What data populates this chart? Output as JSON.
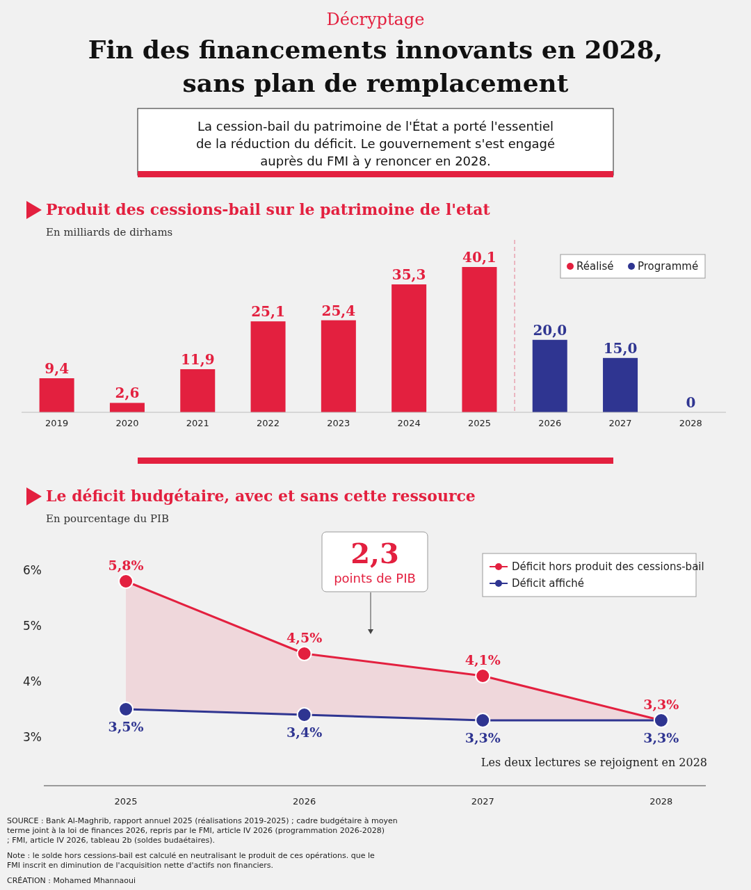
{
  "chart_data": [
    {
      "type": "other",
      "subtitle": "Décryptage",
      "title": "Fin des financements innovants en 2028, sans plan de remplacement",
      "annotations": [
        "La cession-bail du patrimoine de l'État a porté l'essentiel de la réduction du déficit. Le gouvernement s'est engagé auprès du FMI à y renoncer en 2028."
      ]
    },
    {
      "type": "bar",
      "title": "Produit des cessions-bail sur le patrimoine de l'etat",
      "subtitle": "En milliards de dirhams",
      "x": [
        2019,
        2020,
        2021,
        2022,
        2023,
        2024,
        2025,
        2026,
        2027,
        2028
      ],
      "xlim": [
        2018.5,
        2028.5
      ],
      "xticks": [
        2019,
        2020,
        2021,
        2022,
        2023,
        2024,
        2025,
        2026,
        2027,
        2028
      ],
      "tick_labels": "x",
      "legend": "top right",
      "series": [
        {
          "name": "Réalisé",
          "color": "#e3203f",
          "values": [
            9.4,
            2.6,
            11.9,
            25.1,
            25.4,
            35.3,
            40.1,
            null,
            null,
            null
          ],
          "value_labels": [
            "9,4",
            "2,6",
            "11,9",
            "25,1",
            "25,4",
            "35,3",
            "40,1",
            null,
            null,
            null
          ]
        },
        {
          "name": "Programmé",
          "color": "#2f3591",
          "values": [
            null,
            null,
            null,
            null,
            null,
            null,
            null,
            20.0,
            15.0,
            0
          ],
          "value_labels": [
            null,
            null,
            null,
            null,
            null,
            null,
            null,
            "20,0",
            "15,0",
            "0"
          ]
        }
      ],
      "ref_lines": [
        {
          "axis": "x",
          "value": 2025.5,
          "color": "#e8a3b0",
          "line_style": "dashed"
        }
      ]
    },
    {
      "type": "line",
      "title": "Le déficit budgétaire, avec et sans cette ressource",
      "subtitle": "En pourcentage du PIB",
      "x": [
        2025,
        2026,
        2027,
        2028
      ],
      "xlim": [
        2024.54,
        2028.25
      ],
      "xticks": [
        2025,
        2026,
        2027,
        2028
      ],
      "ylim": [
        2.125,
        6
      ],
      "yticks": [
        {
          "value": 3,
          "label": "3%"
        },
        {
          "value": 4,
          "label": "4%"
        },
        {
          "value": 5,
          "label": "5%"
        },
        {
          "value": 6,
          "label": "6%"
        }
      ],
      "grid": false,
      "legend": "top right",
      "marker": "circle",
      "line_style": "solid",
      "series": [
        {
          "name": "Déficit hors produit des cessions-bail",
          "color": "#e3203f",
          "values": [
            5.8,
            4.5,
            4.1,
            3.3
          ],
          "value_labels": [
            "5,8%",
            "4,5%",
            "4,1%",
            "3,3%"
          ],
          "lower": [
            3.5,
            3.4,
            3.3,
            3.3
          ],
          "upper": [
            5.8,
            4.5,
            4.1,
            3.3
          ]
        },
        {
          "name": "Déficit affiché",
          "color": "#2f3591",
          "values": [
            3.5,
            3.4,
            3.3,
            3.3
          ],
          "value_labels": [
            "3,5%",
            "3,4%",
            "3,3%",
            "3,3%"
          ]
        }
      ],
      "annotations": [
        "2,3\npoints de PIB",
        "Les deux lectures se rejoignent en 2028",
        "SOURCE : Bank Al-Maghrib, rapport annuel 2025 (réalisations 2019-2025) ; cadre budgétaire à moyen terme joint à la loi de finances 2026, repris par le FMI, article IV 2026 (programmation 2026-2028) ; FMI, article IV 2026, tableau 2b (soldes budaétaires).",
        "Note : le solde hors cessions-bail est calculé en neutralisant le produit de ces opérations. que le FMI inscrit en diminution de l'acquisition nette d'actifs non financiers.",
        "CRÉATION : Mohamed Mhannaoui"
      ]
    }
  ]
}
